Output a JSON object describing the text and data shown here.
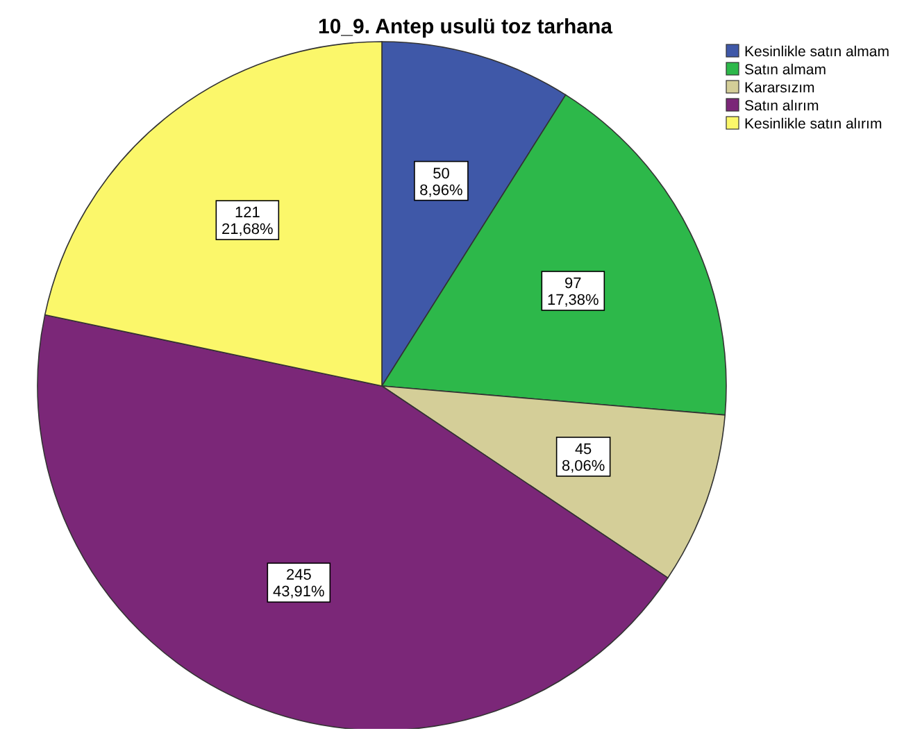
{
  "chart_data": {
    "type": "pie",
    "title": "10_9. Antep usulü toz tarhana",
    "categories": [
      "Kesinlikle satın almam",
      "Satın almam",
      "Kararsızım",
      "Satın alırım",
      "Kesinlikle satın alırım"
    ],
    "values": [
      50,
      97,
      45,
      245,
      121
    ],
    "colors": [
      "#3f58a8",
      "#2db84a",
      "#d4ce98",
      "#7b2778",
      "#fbf76a"
    ],
    "value_labels": [
      "50\n8,96%",
      "97\n17,38%",
      "45\n8,06%",
      "245\n43,91%",
      "121\n21,68%"
    ],
    "legend": "top right"
  }
}
